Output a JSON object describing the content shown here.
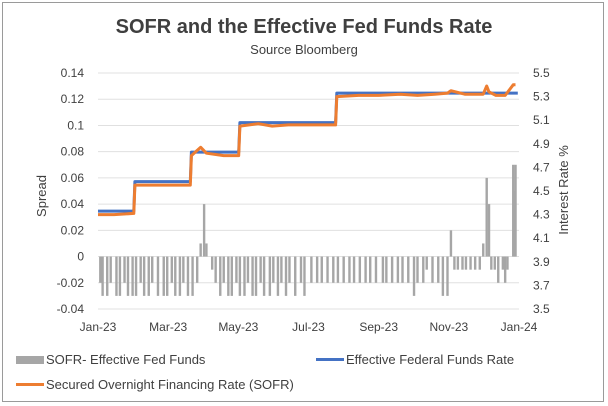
{
  "chart_data": {
    "type": "line",
    "title": "SOFR and the Effective Fed Funds Rate",
    "subtitle": "Source Bloomberg",
    "ylabel_left": "Spread",
    "ylabel_right": "Interest Rate %",
    "y_left_range": [
      -0.04,
      0.14
    ],
    "y_left_ticks": [
      "-0.04",
      "-0.02",
      "0",
      "0.02",
      "0.04",
      "0.06",
      "0.08",
      "0.1",
      "0.12",
      "0.14"
    ],
    "y_right_range": [
      3.5,
      5.5
    ],
    "y_right_ticks": [
      "3.5",
      "3.7",
      "3.9",
      "4.1",
      "4.3",
      "4.5",
      "4.7",
      "4.9",
      "5.1",
      "5.3",
      "5.5"
    ],
    "x_ticks": [
      "Jan-23",
      "Mar-23",
      "May-23",
      "Jul-23",
      "Sep-23",
      "Nov-23",
      "Jan-24"
    ],
    "legend_position": "bottom",
    "series": [
      {
        "name": "SOFR- Effective Fed Funds",
        "type": "bar",
        "color": "#a6a6a6",
        "points": [
          [
            "2023-01-03",
            -0.02
          ],
          [
            "2023-01-05",
            -0.03
          ],
          [
            "2023-01-09",
            -0.03
          ],
          [
            "2023-01-12",
            -0.02
          ],
          [
            "2023-01-17",
            -0.03
          ],
          [
            "2023-01-20",
            -0.03
          ],
          [
            "2023-01-24",
            -0.02
          ],
          [
            "2023-01-27",
            -0.03
          ],
          [
            "2023-01-31",
            -0.03
          ],
          [
            "2023-02-03",
            -0.03
          ],
          [
            "2023-02-07",
            -0.02
          ],
          [
            "2023-02-10",
            -0.03
          ],
          [
            "2023-02-14",
            -0.03
          ],
          [
            "2023-02-17",
            -0.02
          ],
          [
            "2023-02-22",
            -0.03
          ],
          [
            "2023-02-27",
            -0.03
          ],
          [
            "2023-03-02",
            -0.03
          ],
          [
            "2023-03-06",
            -0.02
          ],
          [
            "2023-03-09",
            -0.03
          ],
          [
            "2023-03-13",
            -0.03
          ],
          [
            "2023-03-16",
            -0.02
          ],
          [
            "2023-03-20",
            -0.03
          ],
          [
            "2023-03-24",
            -0.03
          ],
          [
            "2023-03-28",
            -0.02
          ],
          [
            "2023-03-31",
            0.01
          ],
          [
            "2023-04-03",
            0.04
          ],
          [
            "2023-04-05",
            0.01
          ],
          [
            "2023-04-10",
            -0.01
          ],
          [
            "2023-04-13",
            -0.02
          ],
          [
            "2023-04-17",
            -0.03
          ],
          [
            "2023-04-20",
            -0.02
          ],
          [
            "2023-04-24",
            -0.03
          ],
          [
            "2023-04-27",
            -0.03
          ],
          [
            "2023-05-01",
            -0.02
          ],
          [
            "2023-05-04",
            -0.03
          ],
          [
            "2023-05-08",
            -0.03
          ],
          [
            "2023-05-11",
            -0.02
          ],
          [
            "2023-05-15",
            -0.03
          ],
          [
            "2023-05-18",
            -0.03
          ],
          [
            "2023-05-22",
            -0.02
          ],
          [
            "2023-05-25",
            -0.03
          ],
          [
            "2023-05-30",
            -0.03
          ],
          [
            "2023-06-02",
            -0.02
          ],
          [
            "2023-06-06",
            -0.03
          ],
          [
            "2023-06-09",
            -0.02
          ],
          [
            "2023-06-13",
            -0.03
          ],
          [
            "2023-06-16",
            -0.02
          ],
          [
            "2023-06-21",
            -0.03
          ],
          [
            "2023-06-26",
            -0.02
          ],
          [
            "2023-06-29",
            -0.03
          ],
          [
            "2023-07-05",
            -0.02
          ],
          [
            "2023-07-10",
            -0.02
          ],
          [
            "2023-07-14",
            -0.02
          ],
          [
            "2023-07-19",
            -0.02
          ],
          [
            "2023-07-24",
            -0.02
          ],
          [
            "2023-07-28",
            -0.02
          ],
          [
            "2023-08-02",
            -0.02
          ],
          [
            "2023-08-07",
            -0.02
          ],
          [
            "2023-08-11",
            -0.02
          ],
          [
            "2023-08-16",
            -0.02
          ],
          [
            "2023-08-21",
            -0.02
          ],
          [
            "2023-08-25",
            -0.02
          ],
          [
            "2023-08-30",
            -0.02
          ],
          [
            "2023-09-05",
            -0.02
          ],
          [
            "2023-09-08",
            -0.02
          ],
          [
            "2023-09-13",
            -0.02
          ],
          [
            "2023-09-18",
            -0.02
          ],
          [
            "2023-09-22",
            -0.02
          ],
          [
            "2023-09-27",
            -0.02
          ],
          [
            "2023-10-02",
            -0.03
          ],
          [
            "2023-10-05",
            -0.02
          ],
          [
            "2023-10-10",
            -0.02
          ],
          [
            "2023-10-13",
            -0.01
          ],
          [
            "2023-10-18",
            -0.02
          ],
          [
            "2023-10-23",
            -0.02
          ],
          [
            "2023-10-27",
            -0.03
          ],
          [
            "2023-10-31",
            -0.03
          ],
          [
            "2023-11-03",
            0.02
          ],
          [
            "2023-11-06",
            -0.01
          ],
          [
            "2023-11-09",
            -0.01
          ],
          [
            "2023-11-13",
            -0.01
          ],
          [
            "2023-11-16",
            -0.01
          ],
          [
            "2023-11-20",
            -0.01
          ],
          [
            "2023-11-24",
            -0.01
          ],
          [
            "2023-11-28",
            -0.01
          ],
          [
            "2023-12-01",
            0.01
          ],
          [
            "2023-12-04",
            0.06
          ],
          [
            "2023-12-06",
            0.04
          ],
          [
            "2023-12-08",
            -0.01
          ],
          [
            "2023-12-11",
            -0.01
          ],
          [
            "2023-12-14",
            -0.02
          ],
          [
            "2023-12-18",
            -0.01
          ],
          [
            "2023-12-20",
            -0.02
          ],
          [
            "2023-12-22",
            -0.01
          ],
          [
            "2023-12-27",
            0.07
          ],
          [
            "2023-12-28",
            0.05
          ],
          [
            "2023-12-29",
            0.07
          ]
        ]
      },
      {
        "name": "Effective Federal Funds Rate",
        "type": "line",
        "color": "#4472c4",
        "points": [
          [
            "2023-01-01",
            4.33
          ],
          [
            "2023-02-01",
            4.33
          ],
          [
            "2023-02-02",
            4.58
          ],
          [
            "2023-03-22",
            4.58
          ],
          [
            "2023-03-23",
            4.83
          ],
          [
            "2023-05-03",
            4.83
          ],
          [
            "2023-05-04",
            5.08
          ],
          [
            "2023-07-26",
            5.08
          ],
          [
            "2023-07-27",
            5.33
          ],
          [
            "2023-12-31",
            5.33
          ]
        ]
      },
      {
        "name": "Secured Overnight Financing Rate (SOFR)",
        "type": "line",
        "color": "#ed7d31",
        "points": [
          [
            "2023-01-01",
            4.3
          ],
          [
            "2023-01-15",
            4.3
          ],
          [
            "2023-02-01",
            4.31
          ],
          [
            "2023-02-02",
            4.55
          ],
          [
            "2023-02-20",
            4.55
          ],
          [
            "2023-03-10",
            4.55
          ],
          [
            "2023-03-22",
            4.55
          ],
          [
            "2023-03-23",
            4.8
          ],
          [
            "2023-03-31",
            4.87
          ],
          [
            "2023-04-05",
            4.82
          ],
          [
            "2023-04-20",
            4.8
          ],
          [
            "2023-05-03",
            4.8
          ],
          [
            "2023-05-04",
            5.05
          ],
          [
            "2023-05-20",
            5.07
          ],
          [
            "2023-06-01",
            5.05
          ],
          [
            "2023-06-15",
            5.06
          ],
          [
            "2023-07-01",
            5.06
          ],
          [
            "2023-07-26",
            5.06
          ],
          [
            "2023-07-27",
            5.3
          ],
          [
            "2023-08-15",
            5.31
          ],
          [
            "2023-09-01",
            5.31
          ],
          [
            "2023-09-20",
            5.32
          ],
          [
            "2023-10-05",
            5.31
          ],
          [
            "2023-10-20",
            5.32
          ],
          [
            "2023-10-31",
            5.33
          ],
          [
            "2023-11-03",
            5.35
          ],
          [
            "2023-11-15",
            5.32
          ],
          [
            "2023-12-01",
            5.32
          ],
          [
            "2023-12-04",
            5.39
          ],
          [
            "2023-12-06",
            5.34
          ],
          [
            "2023-12-12",
            5.31
          ],
          [
            "2023-12-20",
            5.31
          ],
          [
            "2023-12-27",
            5.4
          ],
          [
            "2023-12-29",
            5.4
          ]
        ]
      }
    ]
  }
}
